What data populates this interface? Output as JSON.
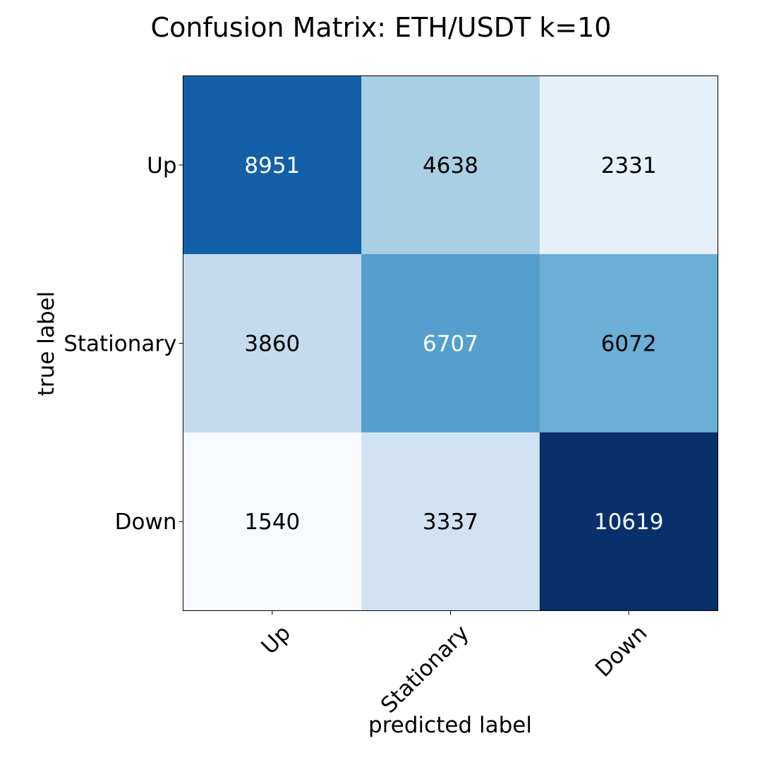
{
  "chart_data": {
    "type": "heatmap",
    "title": "Confusion Matrix: ETH/USDT k=10",
    "xlabel": "predicted label",
    "ylabel": "true label",
    "x_categories": [
      "Up",
      "Stationary",
      "Down"
    ],
    "y_categories": [
      "Up",
      "Stationary",
      "Down"
    ],
    "values": [
      [
        8951,
        4638,
        2331
      ],
      [
        3860,
        6707,
        6072
      ],
      [
        1540,
        3337,
        10619
      ]
    ],
    "colormap": "Blues",
    "grid": false,
    "legend": "none"
  }
}
